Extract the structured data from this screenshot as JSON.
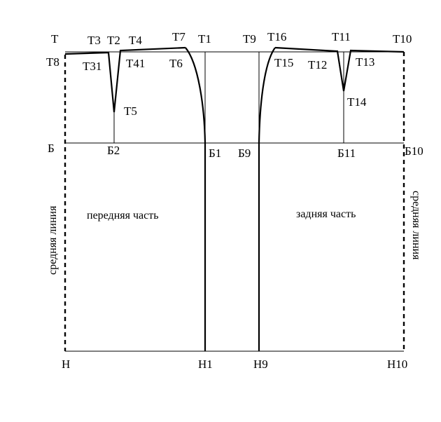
{
  "points": {
    "T": "Т",
    "T1": "Т1",
    "T2": "Т2",
    "T3": "Т3",
    "T4": "Т4",
    "T5": "Т5",
    "T6": "Т6",
    "T7": "Т7",
    "T8": "Т8",
    "T9": "Т9",
    "T10": "Т10",
    "T11": "Т11",
    "T12": "Т12",
    "T13": "Т13",
    "T14": "Т14",
    "T15": "Т15",
    "T16": "Т16",
    "T31": "Т31",
    "T41": "Т41",
    "B": "Б",
    "B1": "Б1",
    "B2": "Б2",
    "B9": "Б9",
    "B10": "Б10",
    "B11": "Б11",
    "H": "Н",
    "H1": "Н1",
    "H9": "Н9",
    "H10": "Н10"
  },
  "parts": {
    "front": "передняя часть",
    "back": "задняя часть"
  },
  "center_line": {
    "left": "средняя линия",
    "right": "средняя линия"
  }
}
